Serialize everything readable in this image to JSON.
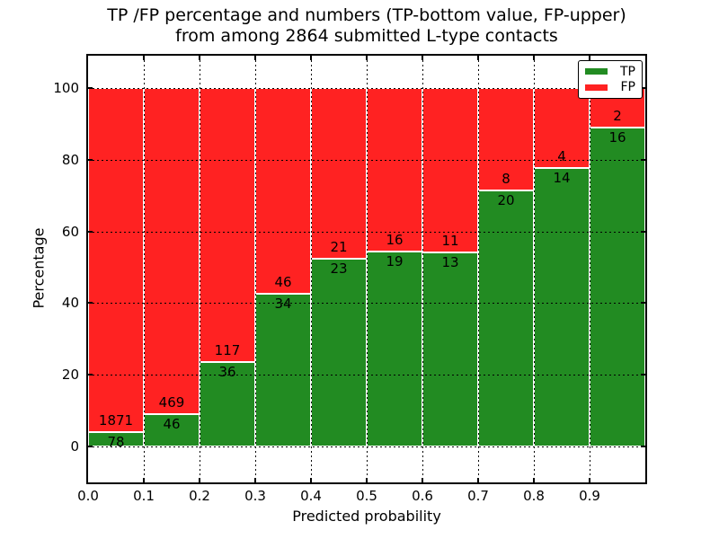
{
  "title": {
    "line1": "TP /FP percentage and numbers (TP-bottom value, FP-upper)",
    "line2": "from among 2864 submitted L-type contacts"
  },
  "axes": {
    "xlabel": "Predicted probability",
    "ylabel": "Percentage",
    "xtick_labels": [
      "0.0",
      "0.1",
      "0.2",
      "0.3",
      "0.4",
      "0.5",
      "0.6",
      "0.7",
      "0.8",
      "0.9"
    ],
    "ytick_labels": [
      "0",
      "20",
      "40",
      "60",
      "80",
      "100"
    ],
    "ytick_values": [
      0,
      20,
      40,
      60,
      80,
      100
    ]
  },
  "legend": {
    "items": [
      {
        "label": "TP",
        "color": "#228b22"
      },
      {
        "label": "FP",
        "color": "#ff2222"
      }
    ]
  },
  "colors": {
    "tp": "#228b22",
    "fp": "#ff2222",
    "bar_edge": "#ffffff",
    "grid": "#000000",
    "background": "#ffffff",
    "text": "#000000"
  },
  "chart_data": {
    "type": "bar",
    "stacked": true,
    "orientation": "vertical",
    "title": "TP /FP percentage and numbers (TP-bottom value, FP-upper) from among 2864 submitted L-type contacts",
    "xlabel": "Predicted probability",
    "ylabel": "Percentage",
    "total_contacts": 2864,
    "bins": [
      0.0,
      0.1,
      0.2,
      0.3,
      0.4,
      0.5,
      0.6,
      0.7,
      0.8,
      0.9
    ],
    "bin_width": 0.1,
    "series": [
      {
        "name": "TP",
        "color": "#228b22",
        "counts": [
          78,
          46,
          36,
          34,
          23,
          19,
          13,
          20,
          14,
          16
        ]
      },
      {
        "name": "FP",
        "color": "#ff2222",
        "counts": [
          1871,
          469,
          117,
          46,
          21,
          16,
          11,
          8,
          4,
          2
        ]
      }
    ],
    "tp_percent": [
      4.0,
      8.9,
      23.5,
      42.5,
      52.3,
      54.3,
      54.2,
      71.4,
      77.8,
      88.9
    ],
    "xlim": [
      0.0,
      1.0
    ],
    "ylim": [
      -10,
      110
    ],
    "yticks": [
      0,
      20,
      40,
      60,
      80,
      100
    ],
    "grid": "dotted",
    "grid_over_bars": true,
    "legend_position": "upper right",
    "value_labels": "TP count below segment boundary, FP count above boundary"
  }
}
